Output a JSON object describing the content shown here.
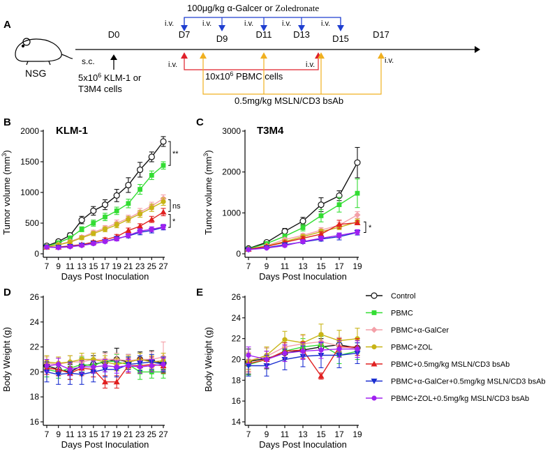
{
  "panel_labels": {
    "a": "A",
    "b": "B",
    "c": "C",
    "d": "D",
    "e": "E"
  },
  "schematic": {
    "mouse_label": "NSG",
    "top_bracket_label": "100μg/kg α-Galcer or ",
    "top_bracket_label_serif": "Zoledronate",
    "iv": "i.v.",
    "days": [
      "D0",
      "D7",
      "D9",
      "D11",
      "D13",
      "D15",
      "D17"
    ],
    "sc": "s.c.",
    "cells_line1": "5x10",
    "cells_sup": "6",
    "cells_line1_rest": "  KLM-1 or",
    "cells_line2": "T3M4 cells",
    "pbmc_prefix": "10x10",
    "pbmc_sup": "6",
    "pbmc_rest": "  PBMC cells",
    "bsab_label": "0.5mg/kg MSLN/CD3 bsAb",
    "colors": {
      "arrow": "#000000",
      "galcer": "#1f3fd0",
      "pbmc": "#e0202a",
      "bsab": "#f0b020"
    }
  },
  "legend": [
    {
      "name": "Control",
      "color": "#111111",
      "marker": "circle-open"
    },
    {
      "name": "PBMC",
      "color": "#33dd33",
      "marker": "square"
    },
    {
      "name": "PBMC+α-GalCer",
      "color": "#f4a0a8",
      "marker": "diamond"
    },
    {
      "name": "PBMC+ZOL",
      "color": "#c8b416",
      "marker": "circle"
    },
    {
      "name": "PBMC+0.5mg/kg MSLN/CD3 bsAb",
      "color": "#e02020",
      "marker": "triangle-up"
    },
    {
      "name": "PBMC+α-GalCer+0.5mg/kg MSLN/CD3 bsAb",
      "color": "#1a2ed0",
      "marker": "triangle-down"
    },
    {
      "name": "PBMC+ZOL+0.5mg/kg MSLN/CD3 bsAb",
      "color": "#a020f0",
      "marker": "circle"
    }
  ],
  "chart_data": [
    {
      "id": "B",
      "type": "line",
      "title": "KLM-1",
      "xlabel": "Days Post Inoculation",
      "ylabel": "Tumor volume (mm3)",
      "ylabel_base": "Tumor volume (mm",
      "ylabel_sup": "3",
      "ylabel_end": ")",
      "x": [
        7,
        9,
        11,
        13,
        15,
        17,
        19,
        21,
        23,
        25,
        27
      ],
      "xlim": [
        7,
        27
      ],
      "ylim": [
        0,
        2000
      ],
      "yticks": [
        0,
        500,
        1000,
        1500,
        2000
      ],
      "xticks": [
        7,
        9,
        11,
        13,
        15,
        17,
        19,
        21,
        23,
        25,
        27
      ],
      "series": [
        {
          "name": "Control",
          "values": [
            130,
            200,
            300,
            550,
            700,
            800,
            950,
            1120,
            1370,
            1580,
            1830
          ],
          "err": [
            20,
            30,
            40,
            60,
            70,
            80,
            100,
            120,
            120,
            80,
            80
          ]
        },
        {
          "name": "PBMC",
          "values": [
            120,
            180,
            260,
            400,
            500,
            600,
            700,
            820,
            1050,
            1280,
            1440
          ],
          "err": [
            15,
            25,
            30,
            40,
            50,
            60,
            60,
            70,
            80,
            70,
            60
          ]
        },
        {
          "name": "PBMC+α-GalCer",
          "values": [
            115,
            150,
            200,
            270,
            350,
            420,
            500,
            580,
            680,
            780,
            900
          ],
          "err": [
            15,
            20,
            25,
            30,
            35,
            40,
            50,
            50,
            60,
            60,
            60
          ]
        },
        {
          "name": "PBMC+ZOL",
          "values": [
            115,
            145,
            190,
            260,
            330,
            400,
            470,
            560,
            650,
            750,
            850
          ],
          "err": [
            15,
            20,
            25,
            30,
            35,
            40,
            45,
            50,
            55,
            60,
            60
          ]
        },
        {
          "name": "PBMC+0.5mg/kg MSLN/CD3 bsAb",
          "values": [
            110,
            110,
            130,
            150,
            190,
            230,
            280,
            380,
            450,
            560,
            680
          ],
          "err": [
            15,
            15,
            20,
            20,
            25,
            30,
            35,
            40,
            40,
            50,
            60
          ]
        },
        {
          "name": "PBMC+α-GalCer+0.5mg/kg MSLN/CD3 bsAb",
          "values": [
            110,
            105,
            120,
            140,
            170,
            200,
            250,
            290,
            350,
            380,
            430
          ],
          "err": [
            15,
            15,
            20,
            20,
            25,
            25,
            30,
            30,
            40,
            40,
            40
          ]
        },
        {
          "name": "PBMC+ZOL+0.5mg/kg MSLN/CD3 bsAb",
          "values": [
            110,
            100,
            115,
            135,
            165,
            200,
            240,
            300,
            370,
            400,
            440
          ],
          "err": [
            15,
            15,
            20,
            20,
            25,
            25,
            30,
            35,
            40,
            40,
            40
          ]
        }
      ],
      "annotations": [
        "**",
        "ns",
        "*"
      ]
    },
    {
      "id": "C",
      "type": "line",
      "title": "T3M4",
      "xlabel": "Days Post Inoculation",
      "ylabel": "Tumor volume (mm3)",
      "ylabel_base": "Tumor volume (mm",
      "ylabel_sup": "3",
      "ylabel_end": ")",
      "x": [
        7,
        9,
        11,
        13,
        15,
        17,
        19
      ],
      "xlim": [
        7,
        19
      ],
      "ylim": [
        0,
        3000
      ],
      "yticks": [
        0,
        1000,
        2000,
        3000
      ],
      "xticks": [
        7,
        9,
        11,
        13,
        15,
        17,
        19
      ],
      "series": [
        {
          "name": "Control",
          "values": [
            130,
            280,
            550,
            800,
            1200,
            1420,
            2230
          ],
          "err": [
            20,
            40,
            70,
            90,
            170,
            120,
            370
          ]
        },
        {
          "name": "PBMC",
          "values": [
            120,
            250,
            430,
            640,
            930,
            1200,
            1480
          ],
          "err": [
            20,
            30,
            50,
            80,
            150,
            180,
            350
          ]
        },
        {
          "name": "PBMC+α-GalCer",
          "values": [
            110,
            200,
            350,
            450,
            580,
            700,
            950
          ],
          "err": [
            15,
            30,
            40,
            50,
            60,
            70,
            80
          ]
        },
        {
          "name": "PBMC+ZOL",
          "values": [
            110,
            190,
            300,
            420,
            540,
            650,
            780
          ],
          "err": [
            15,
            25,
            40,
            50,
            60,
            60,
            70
          ]
        },
        {
          "name": "PBMC+0.5mg/kg MSLN/CD3 bsAb",
          "values": [
            110,
            180,
            280,
            380,
            480,
            720,
            760
          ],
          "err": [
            15,
            25,
            30,
            40,
            60,
            100,
            50
          ]
        },
        {
          "name": "PBMC+α-GalCer+0.5mg/kg MSLN/CD3 bsAb",
          "values": [
            100,
            150,
            220,
            290,
            360,
            420,
            520
          ],
          "err": [
            15,
            20,
            30,
            40,
            50,
            80,
            60
          ]
        },
        {
          "name": "PBMC+ZOL+0.5mg/kg MSLN/CD3 bsAb",
          "values": [
            100,
            140,
            200,
            300,
            380,
            450,
            530
          ],
          "err": [
            15,
            20,
            30,
            40,
            50,
            60,
            60
          ]
        }
      ],
      "annotations": [
        "*"
      ]
    },
    {
      "id": "D",
      "type": "line",
      "title": "",
      "xlabel": "Days Post Inoculation",
      "ylabel": "Body Weight (g)",
      "x": [
        7,
        9,
        11,
        13,
        15,
        17,
        19,
        21,
        23,
        25,
        27
      ],
      "xlim": [
        7,
        27
      ],
      "ylim": [
        16,
        26
      ],
      "yticks": [
        16,
        18,
        20,
        22,
        24,
        26
      ],
      "xticks": [
        7,
        9,
        11,
        13,
        15,
        17,
        19,
        21,
        23,
        25,
        27
      ],
      "series": [
        {
          "name": "Control",
          "values": [
            20.5,
            20.2,
            20.0,
            20.5,
            20.6,
            20.8,
            21.0,
            20.8,
            21.0,
            20.9,
            20.7
          ],
          "err": [
            0.5,
            0.5,
            0.6,
            0.6,
            0.7,
            0.8,
            0.9,
            0.6,
            0.6,
            0.8,
            0.5
          ]
        },
        {
          "name": "PBMC",
          "values": [
            20.2,
            20.0,
            20.3,
            20.6,
            20.5,
            20.9,
            20.8,
            20.6,
            20.0,
            20.0,
            20.0
          ],
          "err": [
            0.6,
            0.5,
            0.5,
            0.6,
            0.6,
            0.6,
            0.6,
            0.6,
            0.6,
            0.5,
            0.5
          ]
        },
        {
          "name": "PBMC+α-GalCer",
          "values": [
            20.7,
            20.6,
            20.8,
            20.8,
            21.0,
            21.0,
            21.0,
            20.9,
            21.0,
            21.0,
            21.2
          ],
          "err": [
            0.5,
            0.5,
            0.5,
            0.5,
            0.5,
            0.5,
            0.5,
            0.5,
            0.5,
            0.6,
            1.2
          ]
        },
        {
          "name": "PBMC+ZOL",
          "values": [
            20.8,
            20.7,
            20.8,
            21.0,
            21.0,
            20.8,
            20.6,
            20.8,
            21.0,
            20.8,
            20.9
          ],
          "err": [
            0.5,
            0.5,
            0.5,
            0.5,
            0.5,
            0.5,
            0.5,
            0.5,
            0.5,
            0.5,
            0.6
          ]
        },
        {
          "name": "PBMC+0.5mg/kg MSLN/CD3 bsAb",
          "values": [
            20.3,
            20.2,
            19.9,
            20.3,
            20.2,
            19.2,
            19.2,
            20.5,
            20.5,
            20.6,
            20.5
          ],
          "err": [
            0.5,
            0.5,
            0.5,
            0.6,
            0.6,
            0.5,
            0.5,
            0.6,
            0.6,
            0.6,
            0.6
          ]
        },
        {
          "name": "PBMC+α-GalCer+0.5mg/kg MSLN/CD3 bsAb",
          "values": [
            20.0,
            19.8,
            19.9,
            19.8,
            20.0,
            20.2,
            20.2,
            20.6,
            20.7,
            20.8,
            20.6
          ],
          "err": [
            0.8,
            0.8,
            0.9,
            0.8,
            0.8,
            0.6,
            0.6,
            0.6,
            0.6,
            0.6,
            0.6
          ]
        },
        {
          "name": "PBMC+ZOL+0.5mg/kg MSLN/CD3 bsAb",
          "values": [
            20.5,
            20.6,
            20.2,
            20.4,
            20.4,
            20.5,
            20.4,
            20.5,
            20.4,
            20.5,
            20.6
          ],
          "err": [
            0.5,
            0.5,
            0.5,
            0.5,
            0.5,
            0.5,
            0.5,
            0.5,
            0.5,
            0.5,
            0.5
          ]
        }
      ]
    },
    {
      "id": "E",
      "type": "line",
      "title": "",
      "xlabel": "Days Post Inoculation",
      "ylabel": "Body Weight (g)",
      "x": [
        7,
        9,
        11,
        13,
        15,
        17,
        19
      ],
      "xlim": [
        7,
        19
      ],
      "ylim": [
        14,
        26
      ],
      "yticks": [
        14,
        16,
        18,
        20,
        22,
        24,
        26
      ],
      "xticks": [
        7,
        9,
        11,
        13,
        15,
        17,
        19
      ],
      "series": [
        {
          "name": "Control",
          "values": [
            19.8,
            20.1,
            20.6,
            20.9,
            21.2,
            21.4,
            21.1
          ],
          "err": [
            1.2,
            1.0,
            0.8,
            0.8,
            0.8,
            0.7,
            0.7
          ]
        },
        {
          "name": "PBMC",
          "values": [
            19.5,
            20.0,
            20.8,
            21.2,
            21.4,
            20.4,
            20.8
          ],
          "err": [
            1.0,
            0.8,
            0.8,
            0.8,
            0.8,
            0.8,
            0.8
          ]
        },
        {
          "name": "PBMC+α-GalCer",
          "values": [
            19.9,
            20.3,
            21.2,
            21.5,
            21.7,
            21.3,
            21.0
          ],
          "err": [
            0.8,
            0.8,
            0.8,
            0.8,
            0.8,
            0.8,
            0.8
          ]
        },
        {
          "name": "PBMC+ZOL",
          "values": [
            19.8,
            20.4,
            21.9,
            21.6,
            22.4,
            21.8,
            22.0
          ],
          "err": [
            0.8,
            0.8,
            0.8,
            0.8,
            1.0,
            1.0,
            1.0
          ]
        },
        {
          "name": "PBMC+0.5mg/kg MSLN/CD3 bsAb",
          "values": [
            19.6,
            20.0,
            20.8,
            20.9,
            18.4,
            21.2,
            21.2
          ],
          "err": [
            0.8,
            0.8,
            0.8,
            0.8,
            0.3,
            0.8,
            0.8
          ]
        },
        {
          "name": "PBMC+α-GalCer+0.5mg/kg MSLN/CD3 bsAb",
          "values": [
            19.4,
            19.4,
            20.0,
            20.3,
            20.4,
            20.4,
            20.6
          ],
          "err": [
            1.0,
            1.0,
            1.0,
            1.0,
            1.2,
            1.2,
            1.0
          ]
        },
        {
          "name": "PBMC+ZOL+0.5mg/kg MSLN/CD3 bsAb",
          "values": [
            20.4,
            20.0,
            20.6,
            20.8,
            20.9,
            21.0,
            21.0
          ],
          "err": [
            0.8,
            0.8,
            0.8,
            0.8,
            0.8,
            0.8,
            0.8
          ]
        }
      ]
    }
  ]
}
